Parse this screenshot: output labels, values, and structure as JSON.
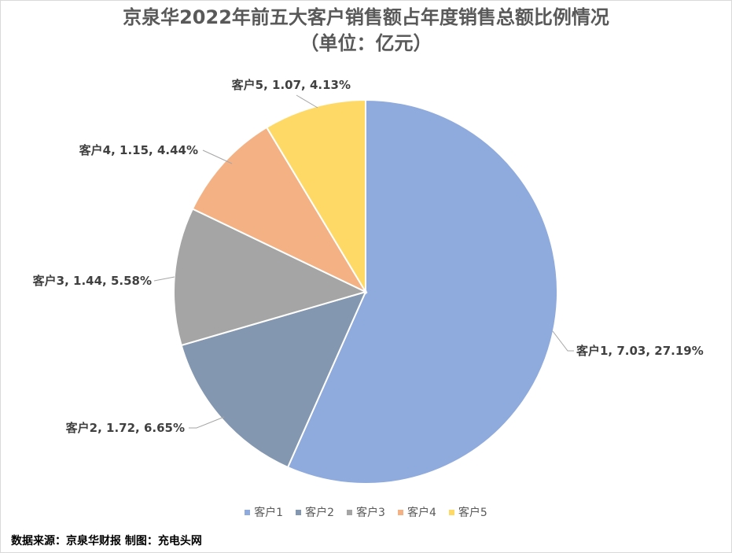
{
  "chart_data": {
    "type": "pie",
    "title": "京泉华2022年前五大客户销售额占年度销售总额比例情况",
    "subtitle": "（单位：亿元）",
    "legend_position": "bottom",
    "start_angle_deg": 0,
    "direction": "clockwise",
    "slices": [
      {
        "name": "客户1",
        "value": 7.03,
        "percent": "27.19%",
        "label": "客户1, 7.03, 27.19%",
        "color": "#8faadc"
      },
      {
        "name": "客户2",
        "value": 1.72,
        "percent": "6.65%",
        "label": "客户2, 1.72, 6.65%",
        "color": "#8497b0"
      },
      {
        "name": "客户3",
        "value": 1.44,
        "percent": "5.58%",
        "label": "客户3, 1.44, 5.58%",
        "color": "#a5a5a5"
      },
      {
        "name": "客户4",
        "value": 1.15,
        "percent": "4.44%",
        "label": "客户4, 1.15, 4.44%",
        "color": "#f4b183"
      },
      {
        "name": "客户5",
        "value": 1.07,
        "percent": "4.13%",
        "label": "客户5, 1.07, 4.13%",
        "color": "#ffd966"
      }
    ]
  },
  "footer": {
    "source": "数据来源：京泉华财报  制图：充电头网"
  }
}
